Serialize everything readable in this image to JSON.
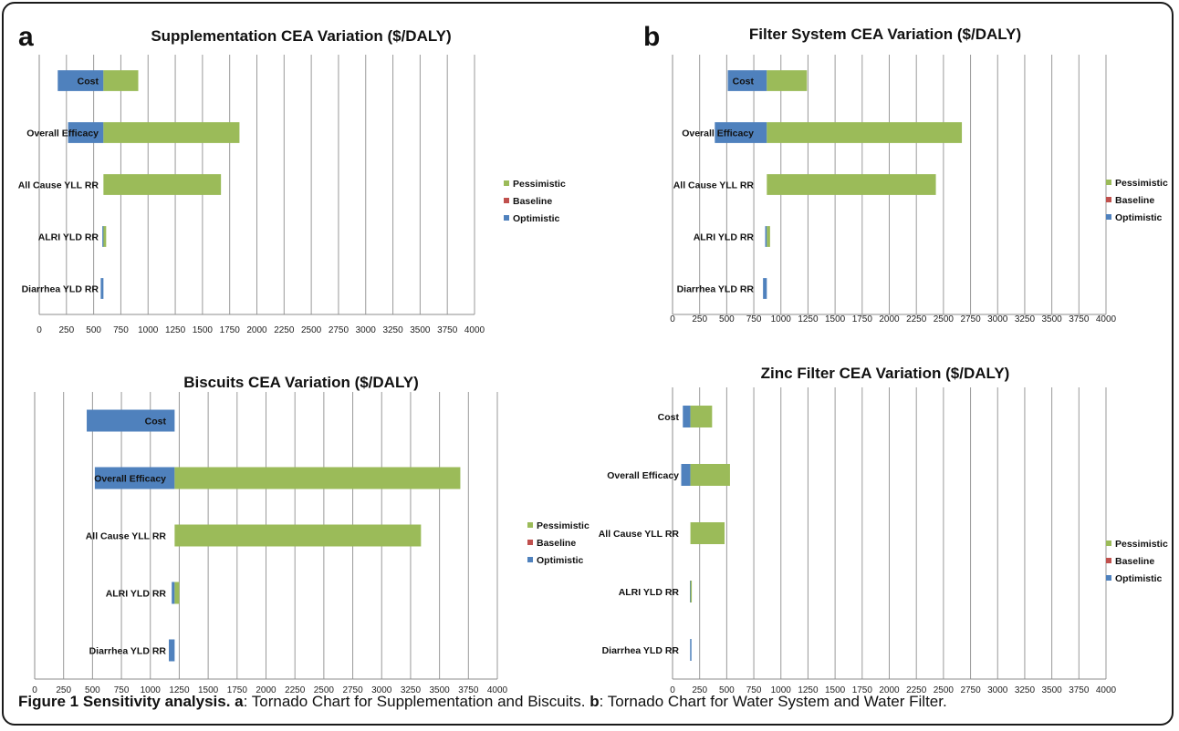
{
  "colors": {
    "optimistic": "#4f81bd",
    "baseline": "#c0504d",
    "pessimistic": "#9bbb59"
  },
  "legend": [
    "Pessimistic",
    "Baseline",
    "Optimistic"
  ],
  "panel_letters": [
    "a",
    "b"
  ],
  "caption": {
    "title": "Figure 1 Sensitivity analysis.",
    "a_letter": "a",
    "a_text": ": Tornado Chart for Supplementation and Biscuits.",
    "b_letter": "b",
    "b_text": ": Tornado Chart for Water System and Water Filter."
  },
  "chart_data": [
    {
      "type": "bar",
      "orientation": "horizontal-tornado",
      "title": "Supplementation CEA Variation ($/DALY)",
      "baseline": 590,
      "categories": [
        "Cost",
        "Overall Efficacy",
        "All Cause YLL RR",
        "ALRI YLD RR",
        "Diarrhea YLD RR"
      ],
      "series": [
        {
          "name": "Optimistic",
          "values": [
            170,
            265,
            590,
            580,
            565
          ]
        },
        {
          "name": "Baseline",
          "values": [
            590,
            590,
            590,
            590,
            590
          ]
        },
        {
          "name": "Pessimistic",
          "values": [
            910,
            1840,
            1670,
            615,
            590
          ]
        }
      ],
      "xlim": [
        0,
        4000
      ],
      "xticks": [
        0,
        250,
        500,
        750,
        1000,
        1250,
        1500,
        1750,
        2000,
        2250,
        2500,
        2750,
        3000,
        3250,
        3500,
        3750,
        4000
      ],
      "grid": "vertical",
      "legend": "right"
    },
    {
      "type": "bar",
      "orientation": "horizontal-tornado",
      "title": "Filter System CEA Variation ($/DALY)",
      "baseline": 870,
      "categories": [
        "Cost",
        "Overall Efficacy",
        "All Cause YLL RR",
        "ALRI YLD RR",
        "Diarrhea YLD RR"
      ],
      "series": [
        {
          "name": "Optimistic",
          "values": [
            510,
            390,
            870,
            855,
            835
          ]
        },
        {
          "name": "Baseline",
          "values": [
            870,
            870,
            870,
            870,
            870
          ]
        },
        {
          "name": "Pessimistic",
          "values": [
            1240,
            2670,
            2430,
            900,
            870
          ]
        }
      ],
      "xlim": [
        0,
        4000
      ],
      "xticks": [
        0,
        250,
        500,
        750,
        1000,
        1250,
        1500,
        1750,
        2000,
        2250,
        2500,
        2750,
        3000,
        3250,
        3500,
        3750,
        4000
      ],
      "grid": "vertical",
      "legend": "right"
    },
    {
      "type": "bar",
      "orientation": "horizontal-tornado",
      "title": "Biscuits CEA Variation ($/DALY)",
      "baseline": 1210,
      "categories": [
        "Cost",
        "Overall Efficacy",
        "All Cause YLL RR",
        "ALRI YLD RR",
        "Diarrhea YLD RR"
      ],
      "series": [
        {
          "name": "Optimistic",
          "values": [
            450,
            520,
            1210,
            1185,
            1160
          ]
        },
        {
          "name": "Baseline",
          "values": [
            1210,
            1210,
            1210,
            1210,
            1210
          ]
        },
        {
          "name": "Pessimistic",
          "values": [
            1210,
            3680,
            3340,
            1250,
            1210
          ]
        }
      ],
      "xlim": [
        0,
        4000
      ],
      "xticks": [
        0,
        250,
        500,
        750,
        1000,
        1250,
        1500,
        1750,
        2000,
        2250,
        2500,
        2750,
        3000,
        3250,
        3500,
        3750,
        4000
      ],
      "grid": "vertical",
      "legend": "right"
    },
    {
      "type": "bar",
      "orientation": "horizontal-tornado",
      "title": "Zinc Filter CEA Variation ($/DALY)",
      "baseline": 165,
      "categories": [
        "Cost",
        "Overall Efficacy",
        "All Cause YLL RR",
        "ALRI YLD RR",
        "Diarrhea YLD RR"
      ],
      "series": [
        {
          "name": "Optimistic",
          "values": [
            95,
            80,
            165,
            160,
            162
          ]
        },
        {
          "name": "Baseline",
          "values": [
            165,
            165,
            165,
            165,
            165
          ]
        },
        {
          "name": "Pessimistic",
          "values": [
            365,
            530,
            480,
            175,
            167
          ]
        }
      ],
      "xlim": [
        0,
        4000
      ],
      "xticks": [
        0,
        250,
        500,
        750,
        1000,
        1250,
        1500,
        1750,
        2000,
        2250,
        2500,
        2750,
        3000,
        3250,
        3500,
        3750,
        4000
      ],
      "grid": "vertical",
      "legend": "right"
    }
  ]
}
